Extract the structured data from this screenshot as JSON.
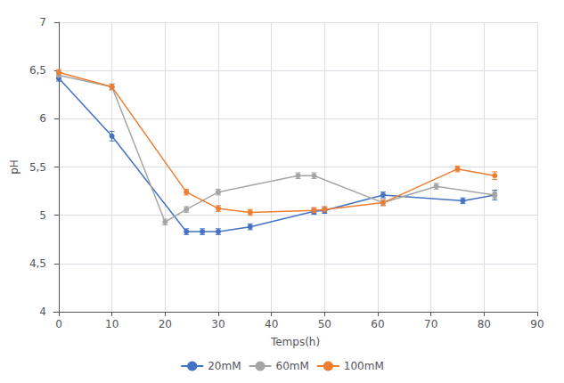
{
  "chart_data": {
    "type": "line",
    "xlabel": "Temps(h)",
    "ylabel": "pH",
    "series": [
      {
        "name": "20mM",
        "color": "#4472C4",
        "marker": "circle",
        "x": [
          0,
          10,
          24,
          27,
          30,
          36,
          48,
          50,
          61,
          76,
          82
        ],
        "values": [
          6.42,
          5.82,
          4.83,
          4.83,
          4.83,
          4.88,
          5.04,
          5.05,
          5.21,
          5.15,
          5.21
        ],
        "yerr": [
          0.03,
          0.05,
          0.03,
          0.03,
          0.03,
          0.03,
          0.03,
          0.03,
          0.03,
          0.03,
          0.05
        ]
      },
      {
        "name": "60mM",
        "color": "#A5A5A5",
        "marker": "circle",
        "x": [
          0,
          10,
          20,
          24,
          30,
          45,
          48,
          61,
          71,
          82
        ],
        "values": [
          6.45,
          6.33,
          4.93,
          5.06,
          5.24,
          5.41,
          5.41,
          5.13,
          5.3,
          5.21
        ],
        "yerr": [
          0.03,
          0.03,
          0.03,
          0.03,
          0.03,
          0.03,
          0.03,
          0.03,
          0.03,
          0.03
        ]
      },
      {
        "name": "100mM",
        "color": "#ED7D31",
        "marker": "circle",
        "x": [
          0,
          10,
          24,
          30,
          36,
          48,
          50,
          61,
          75,
          82
        ],
        "values": [
          6.48,
          6.33,
          5.24,
          5.07,
          5.03,
          5.05,
          5.06,
          5.13,
          5.48,
          5.41
        ],
        "yerr": [
          0.03,
          0.03,
          0.03,
          0.03,
          0.03,
          0.03,
          0.03,
          0.03,
          0.03,
          0.04
        ]
      }
    ],
    "xlim": [
      -1,
      90
    ],
    "xticks": [
      0,
      10,
      20,
      30,
      40,
      50,
      60,
      70,
      80,
      90
    ],
    "ylim": [
      4.0,
      7.0
    ],
    "yticks": [
      4,
      {
        "value": 4.5,
        "label": "4,5"
      },
      5,
      {
        "value": 5.5,
        "label": "5,5"
      },
      6,
      {
        "value": 6.5,
        "label": "6,5"
      },
      7
    ],
    "grid": true,
    "legend": "bottom"
  }
}
